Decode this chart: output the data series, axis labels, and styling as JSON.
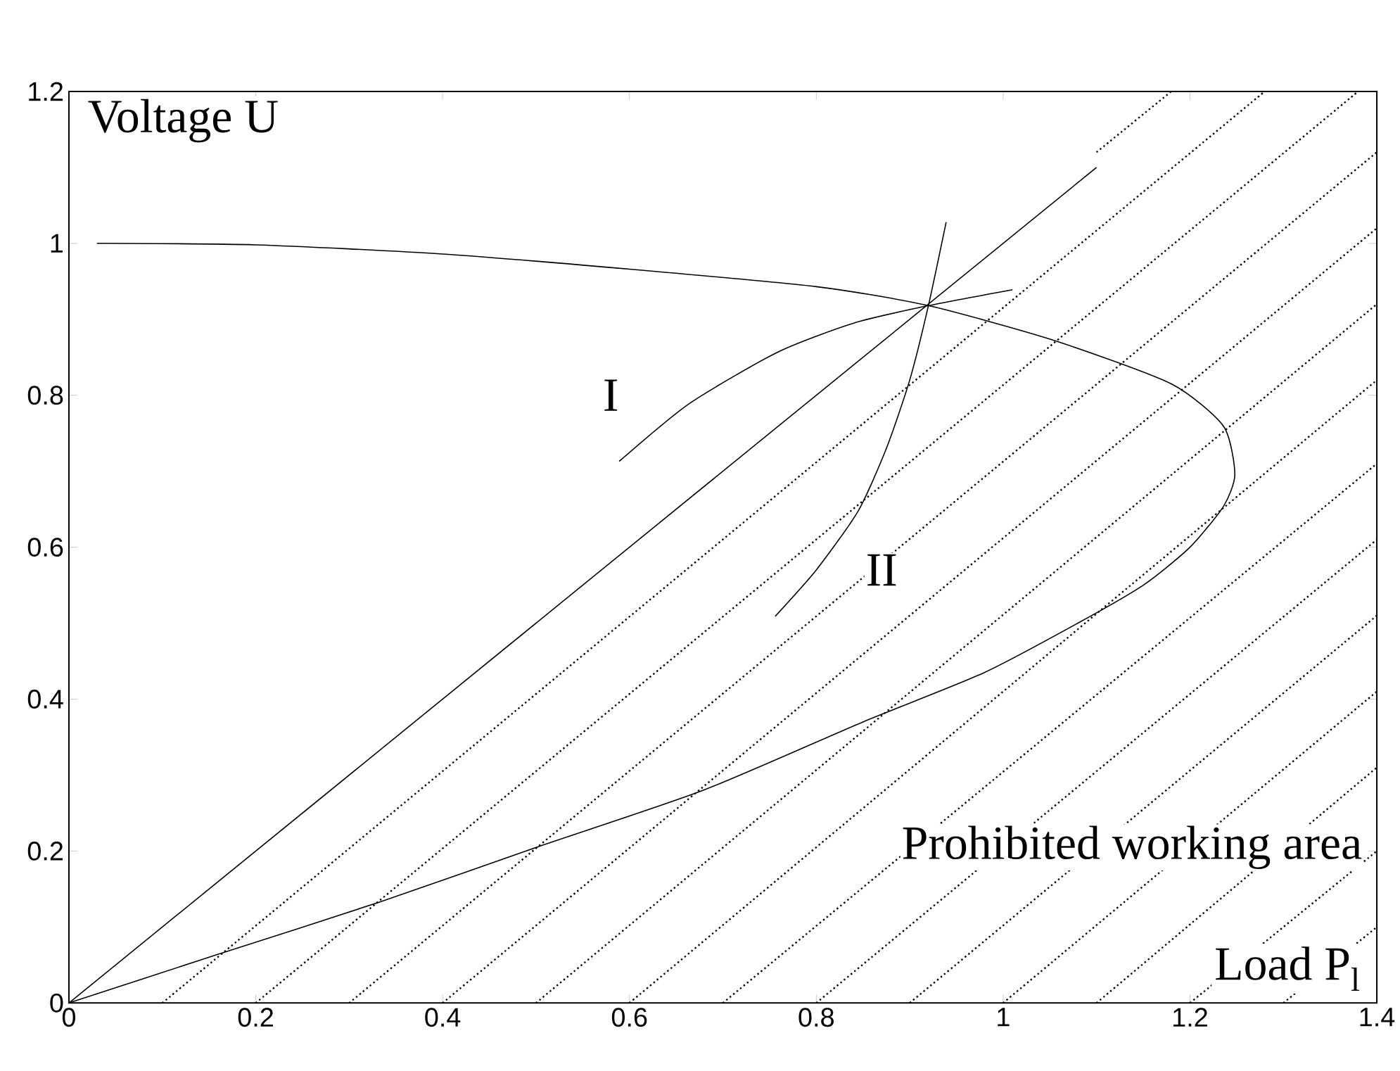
{
  "chart_data": {
    "type": "line",
    "xlabel": "Load P$_{l}$",
    "ylabel": "Voltage U",
    "xlim": [
      0,
      1.4
    ],
    "ylim": [
      0,
      1.2
    ],
    "xticks": [
      0,
      0.2,
      0.4,
      0.6,
      0.8,
      1,
      1.2,
      1.4
    ],
    "yticks": [
      0,
      0.2,
      0.4,
      0.6,
      0.8,
      1,
      1.2
    ],
    "grid": false,
    "marker": "none",
    "line_style": "solid",
    "series": [
      {
        "color": "#000000",
        "x": [
          0.03,
          0.2,
          0.4,
          0.6,
          0.8,
          0.92,
          1.055,
          1.18,
          1.236,
          1.248,
          1.236,
          1.2,
          1.15,
          1.08,
          0.98,
          0.85,
          0.679,
          0.503,
          0.333,
          0.157,
          0
        ],
        "values": [
          1.0,
          0.998,
          0.986,
          0.966,
          0.943,
          0.918,
          0.872,
          0.815,
          0.759,
          0.696,
          0.654,
          0.6,
          0.55,
          0.5,
          0.435,
          0.37,
          0.28,
          0.206,
          0.133,
          0.063,
          0
        ]
      },
      {
        "color": "#000000",
        "x": [
          0,
          1.1
        ],
        "values": [
          0,
          1.1
        ]
      },
      {
        "color": "#000000",
        "x": [
          0.589,
          0.664,
          0.759,
          0.84,
          0.92,
          1.01
        ],
        "values": [
          0.713,
          0.789,
          0.857,
          0.895,
          0.918,
          0.939
        ]
      },
      {
        "color": "#000000",
        "x": [
          0.756,
          0.8,
          0.845,
          0.875,
          0.9,
          0.92,
          0.939
        ],
        "values": [
          0.509,
          0.57,
          0.648,
          0.73,
          0.82,
          0.918,
          1.028
        ]
      },
      {
        "color": "#000000",
        "line_style": "dotted",
        "x": [
          1.1,
          1.18,
          null,
          0.1,
          1.28,
          null,
          0.2,
          1.38,
          null,
          0.3,
          1.4,
          null,
          0.4,
          1.4,
          null,
          0.5,
          1.4,
          null,
          0.6,
          1.4,
          null,
          0.7,
          1.4,
          null,
          0.8,
          1.4,
          null,
          0.9,
          1.4,
          null,
          1.0,
          1.4,
          null,
          1.1,
          1.4,
          null,
          1.2,
          1.4,
          null,
          1.3,
          1.4
        ],
        "values": [
          1.12,
          1.2,
          null,
          0,
          1.2,
          null,
          0,
          1.2,
          null,
          0,
          1.12,
          null,
          0,
          1.02,
          null,
          0,
          0.92,
          null,
          0,
          0.82,
          null,
          0,
          0.71,
          null,
          0,
          0.61,
          null,
          0,
          0.51,
          null,
          0,
          0.41,
          null,
          0,
          0.31,
          null,
          0,
          0.2,
          null,
          0,
          0.1
        ]
      }
    ],
    "annotations": [
      "I",
      "II",
      "Prohibited working area"
    ]
  }
}
